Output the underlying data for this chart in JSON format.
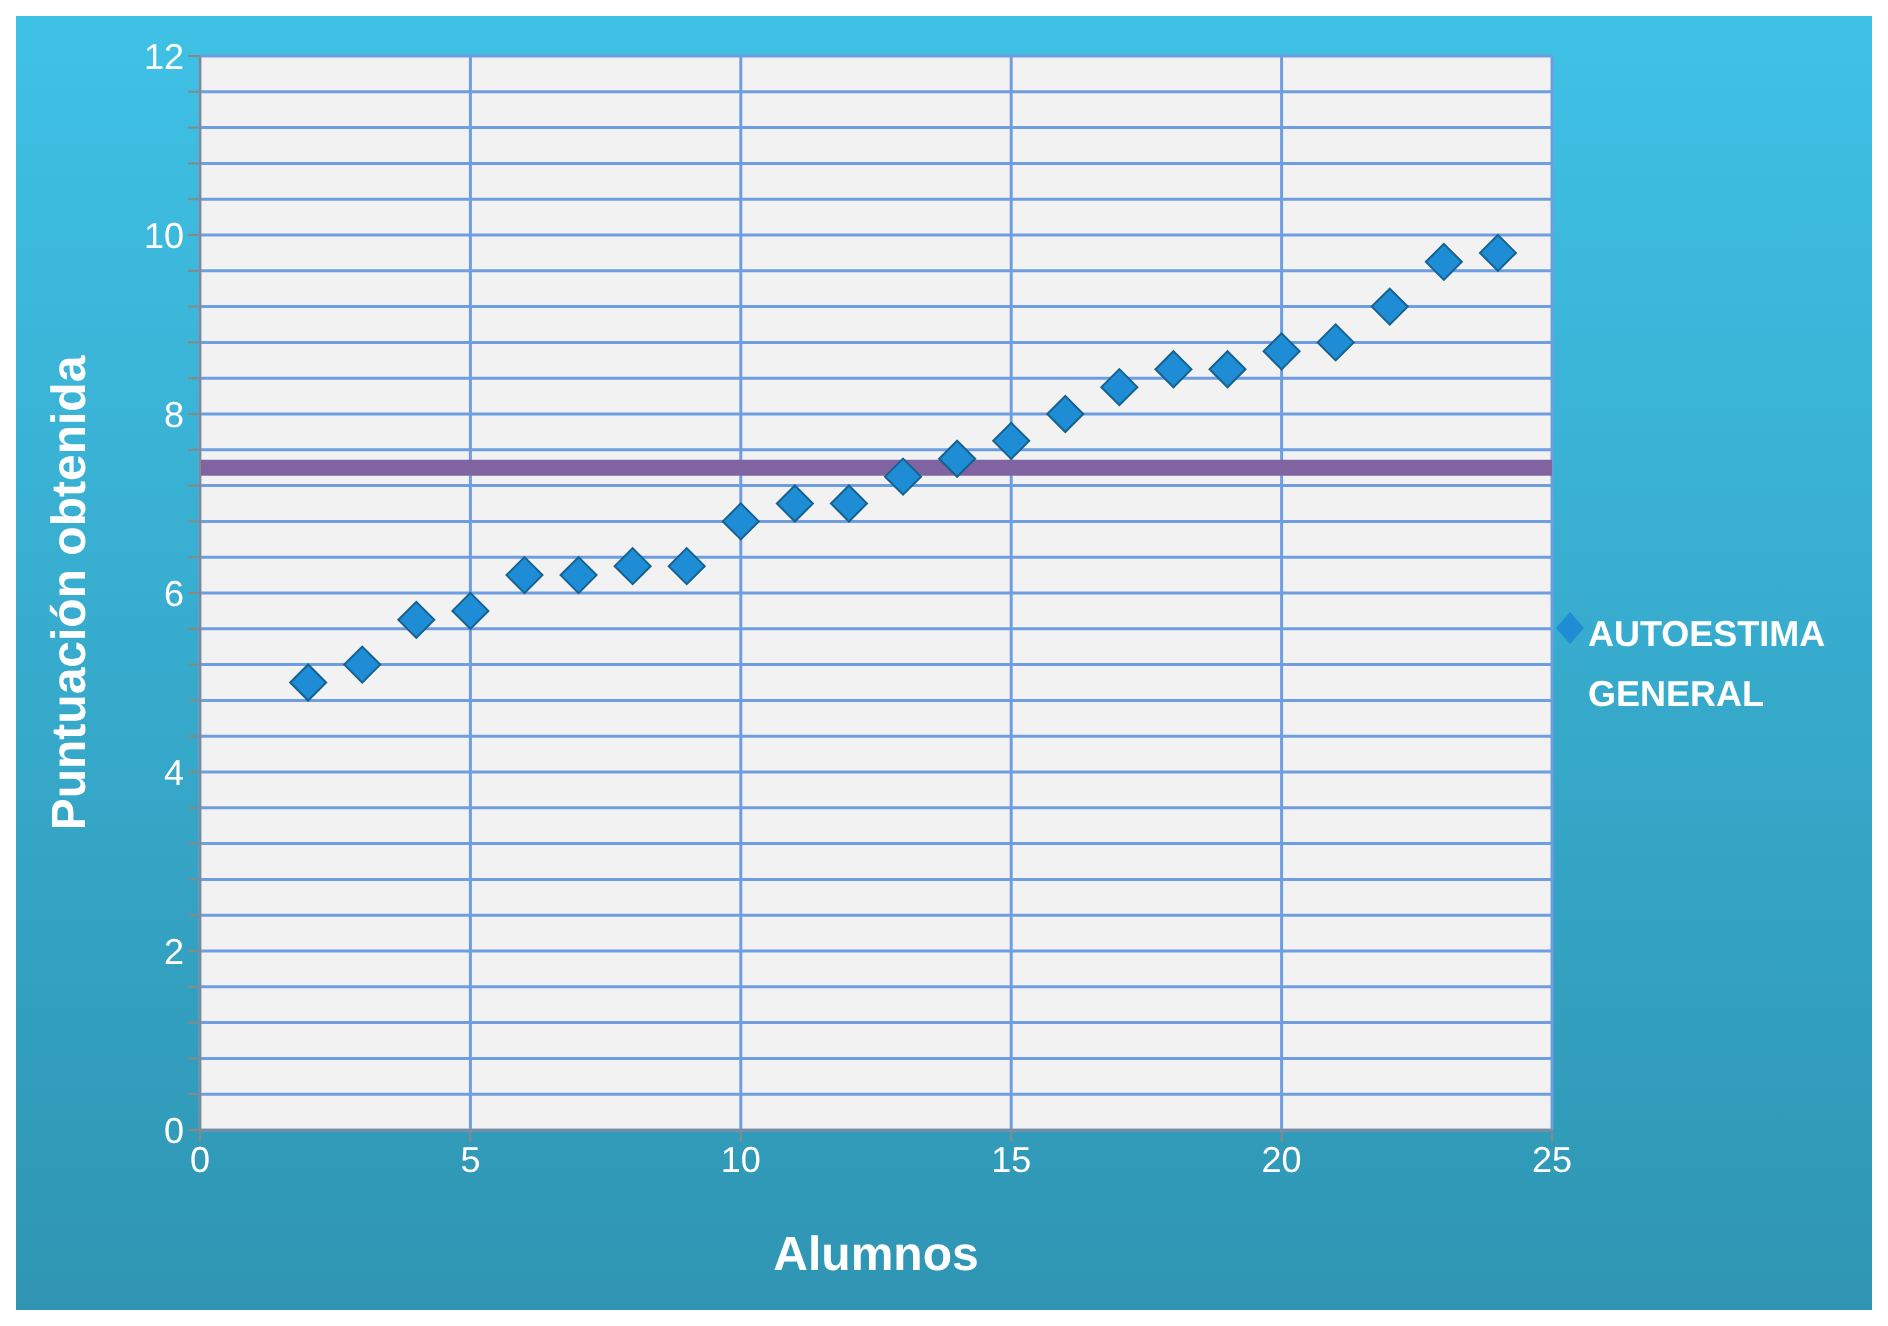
{
  "chart_data": {
    "type": "scatter",
    "xlabel": "Alumnos",
    "ylabel": "Puntuación obtenida",
    "x": [
      2,
      3,
      4,
      5,
      6,
      7,
      8,
      9,
      10,
      11,
      12,
      13,
      14,
      15,
      16,
      17,
      18,
      19,
      20,
      21,
      22,
      23,
      24
    ],
    "series": [
      {
        "name": "AUTOESTIMA GENERAL",
        "color": "#1f8dd6",
        "values": [
          5.0,
          5.2,
          5.7,
          5.8,
          6.2,
          6.2,
          6.3,
          6.3,
          6.8,
          7.0,
          7.0,
          7.3,
          7.5,
          7.7,
          8.0,
          8.3,
          8.5,
          8.5,
          8.7,
          8.8,
          9.2,
          9.7,
          9.8
        ]
      }
    ],
    "xlim": [
      0,
      25
    ],
    "xticks": [
      0,
      5,
      10,
      15,
      20,
      25
    ],
    "ylim": [
      0,
      12
    ],
    "yticks": [
      0,
      {
        "value": 0.4,
        "label": null
      },
      {
        "value": 0.8,
        "label": null
      },
      {
        "value": 1.2,
        "label": null
      },
      {
        "value": 1.6,
        "label": null
      },
      2,
      {
        "value": 2.4,
        "label": null
      },
      {
        "value": 2.8,
        "label": null
      },
      {
        "value": 3.2,
        "label": null
      },
      {
        "value": 3.6,
        "label": null
      },
      4,
      {
        "value": 4.4,
        "label": null
      },
      {
        "value": 4.8,
        "label": null
      },
      {
        "value": 5.2,
        "label": null
      },
      {
        "value": 5.6,
        "label": null
      },
      6,
      {
        "value": 6.4,
        "label": null
      },
      {
        "value": 6.8,
        "label": null
      },
      {
        "value": 7.2,
        "label": null
      },
      {
        "value": 7.6,
        "label": null
      },
      8,
      {
        "value": 8.4,
        "label": null
      },
      {
        "value": 8.8,
        "label": null
      },
      {
        "value": 9.2,
        "label": null
      },
      {
        "value": 9.6,
        "label": null
      },
      10,
      {
        "value": 10.4,
        "label": null
      },
      {
        "value": 10.8,
        "label": null
      },
      {
        "value": 11.2,
        "label": null
      },
      {
        "value": 11.6,
        "label": null
      },
      12
    ],
    "ref_lines": [
      {
        "axis": "y",
        "value": 7.4,
        "color": "#8064a2"
      }
    ],
    "grid": true,
    "legend": "right",
    "marker": "diamond"
  }
}
